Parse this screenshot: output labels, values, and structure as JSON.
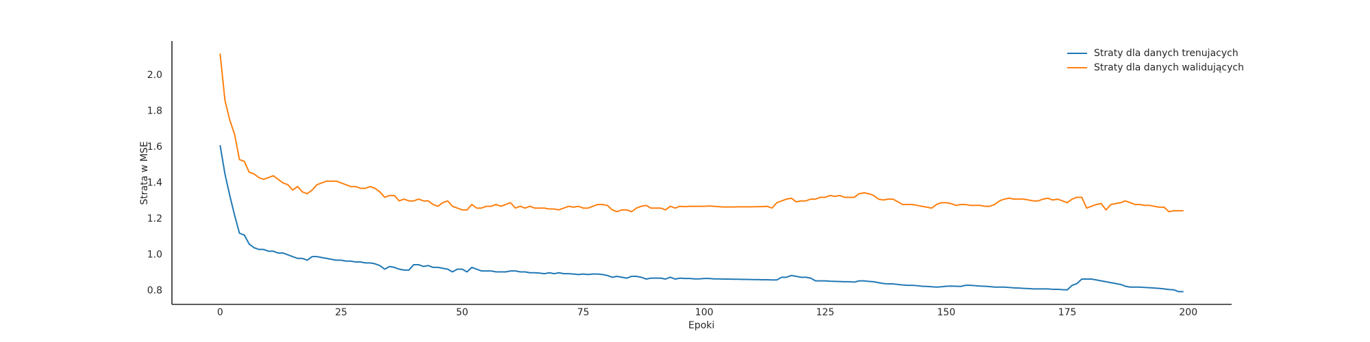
{
  "chart_data": {
    "type": "line",
    "x_label": "Epoki",
    "y_label": "Strata w MSE",
    "x": [
      0,
      1,
      2,
      3,
      4,
      5,
      6,
      7,
      8,
      9,
      10,
      11,
      12,
      13,
      14,
      15,
      16,
      17,
      18,
      19,
      20,
      21,
      22,
      23,
      24,
      25,
      26,
      27,
      28,
      29,
      30,
      31,
      32,
      33,
      34,
      35,
      36,
      37,
      38,
      39,
      40,
      41,
      42,
      43,
      44,
      45,
      46,
      47,
      48,
      49,
      50,
      51,
      52,
      53,
      54,
      55,
      56,
      57,
      58,
      59,
      60,
      61,
      62,
      63,
      64,
      65,
      66,
      67,
      68,
      69,
      70,
      71,
      72,
      73,
      74,
      75,
      76,
      77,
      78,
      79,
      80,
      81,
      82,
      83,
      84,
      85,
      86,
      87,
      88,
      89,
      90,
      91,
      92,
      93,
      94,
      95,
      96,
      97,
      98,
      99,
      100,
      101,
      102,
      103,
      104,
      105,
      106,
      107,
      108,
      109,
      110,
      111,
      112,
      113,
      114,
      115,
      116,
      117,
      118,
      119,
      120,
      121,
      122,
      123,
      124,
      125,
      126,
      127,
      128,
      129,
      130,
      131,
      132,
      133,
      134,
      135,
      136,
      137,
      138,
      139,
      140,
      141,
      142,
      143,
      144,
      145,
      146,
      147,
      148,
      149,
      150,
      151,
      152,
      153,
      154,
      155,
      156,
      157,
      158,
      159,
      160,
      161,
      162,
      163,
      164,
      165,
      166,
      167,
      168,
      169,
      170,
      171,
      172,
      173,
      174,
      175,
      176,
      177,
      178,
      179,
      180,
      181,
      182,
      183,
      184,
      185,
      186,
      187,
      188,
      189,
      190,
      191,
      192,
      193,
      194,
      195,
      196,
      197,
      198,
      199
    ],
    "series": [
      {
        "name": "Straty dla danych trenujacych",
        "color": "#1f77b4",
        "values": [
          1.61,
          1.45,
          1.33,
          1.22,
          1.12,
          1.11,
          1.06,
          1.04,
          1.03,
          1.03,
          1.02,
          1.02,
          1.01,
          1.01,
          1.0,
          0.99,
          0.98,
          0.98,
          0.97,
          0.99,
          0.99,
          0.985,
          0.98,
          0.975,
          0.97,
          0.97,
          0.965,
          0.965,
          0.96,
          0.96,
          0.955,
          0.955,
          0.95,
          0.94,
          0.92,
          0.935,
          0.93,
          0.92,
          0.915,
          0.915,
          0.945,
          0.945,
          0.935,
          0.94,
          0.93,
          0.93,
          0.925,
          0.92,
          0.905,
          0.92,
          0.92,
          0.905,
          0.93,
          0.92,
          0.91,
          0.91,
          0.91,
          0.905,
          0.905,
          0.905,
          0.91,
          0.91,
          0.905,
          0.905,
          0.9,
          0.9,
          0.898,
          0.895,
          0.9,
          0.895,
          0.9,
          0.895,
          0.895,
          0.893,
          0.89,
          0.893,
          0.89,
          0.893,
          0.893,
          0.89,
          0.885,
          0.875,
          0.88,
          0.875,
          0.87,
          0.88,
          0.88,
          0.875,
          0.865,
          0.87,
          0.87,
          0.87,
          0.865,
          0.875,
          0.865,
          0.87,
          0.868,
          0.868,
          0.866,
          0.866,
          0.868,
          0.868,
          0.866,
          0.866,
          0.865,
          0.865,
          0.864,
          0.864,
          0.863,
          0.863,
          0.862,
          0.862,
          0.861,
          0.861,
          0.86,
          0.86,
          0.875,
          0.875,
          0.885,
          0.88,
          0.875,
          0.875,
          0.87,
          0.855,
          0.855,
          0.855,
          0.853,
          0.852,
          0.851,
          0.85,
          0.85,
          0.848,
          0.855,
          0.855,
          0.852,
          0.85,
          0.845,
          0.84,
          0.838,
          0.838,
          0.835,
          0.832,
          0.83,
          0.83,
          0.828,
          0.825,
          0.824,
          0.822,
          0.82,
          0.822,
          0.825,
          0.826,
          0.825,
          0.824,
          0.83,
          0.83,
          0.828,
          0.826,
          0.825,
          0.823,
          0.82,
          0.82,
          0.82,
          0.818,
          0.816,
          0.815,
          0.813,
          0.812,
          0.81,
          0.81,
          0.81,
          0.81,
          0.808,
          0.808,
          0.806,
          0.805,
          0.83,
          0.84,
          0.865,
          0.865,
          0.865,
          0.86,
          0.855,
          0.85,
          0.845,
          0.84,
          0.835,
          0.825,
          0.82,
          0.82,
          0.82,
          0.818,
          0.817,
          0.815,
          0.813,
          0.81,
          0.807,
          0.805,
          0.795,
          0.795
        ]
      },
      {
        "name": "Straty dla danych walidujących",
        "color": "#ff7f0e",
        "values": [
          2.12,
          1.86,
          1.75,
          1.67,
          1.53,
          1.52,
          1.46,
          1.45,
          1.43,
          1.42,
          1.43,
          1.44,
          1.42,
          1.4,
          1.39,
          1.36,
          1.38,
          1.35,
          1.34,
          1.36,
          1.39,
          1.4,
          1.41,
          1.41,
          1.41,
          1.4,
          1.39,
          1.38,
          1.38,
          1.37,
          1.37,
          1.38,
          1.37,
          1.35,
          1.32,
          1.33,
          1.33,
          1.3,
          1.31,
          1.3,
          1.3,
          1.31,
          1.3,
          1.3,
          1.28,
          1.27,
          1.29,
          1.3,
          1.27,
          1.26,
          1.25,
          1.25,
          1.28,
          1.26,
          1.26,
          1.27,
          1.27,
          1.28,
          1.27,
          1.28,
          1.29,
          1.26,
          1.27,
          1.26,
          1.27,
          1.26,
          1.26,
          1.26,
          1.255,
          1.255,
          1.25,
          1.26,
          1.27,
          1.265,
          1.27,
          1.26,
          1.26,
          1.27,
          1.28,
          1.28,
          1.275,
          1.25,
          1.24,
          1.25,
          1.25,
          1.24,
          1.26,
          1.27,
          1.275,
          1.26,
          1.26,
          1.26,
          1.25,
          1.27,
          1.26,
          1.27,
          1.268,
          1.27,
          1.27,
          1.27,
          1.27,
          1.272,
          1.27,
          1.268,
          1.266,
          1.266,
          1.266,
          1.267,
          1.267,
          1.267,
          1.267,
          1.268,
          1.268,
          1.27,
          1.26,
          1.29,
          1.3,
          1.31,
          1.315,
          1.295,
          1.3,
          1.3,
          1.31,
          1.31,
          1.32,
          1.32,
          1.33,
          1.325,
          1.33,
          1.32,
          1.32,
          1.32,
          1.34,
          1.345,
          1.34,
          1.33,
          1.31,
          1.305,
          1.31,
          1.31,
          1.295,
          1.28,
          1.28,
          1.28,
          1.275,
          1.27,
          1.265,
          1.26,
          1.28,
          1.29,
          1.29,
          1.285,
          1.275,
          1.28,
          1.28,
          1.275,
          1.275,
          1.275,
          1.27,
          1.27,
          1.28,
          1.3,
          1.31,
          1.315,
          1.31,
          1.31,
          1.31,
          1.305,
          1.3,
          1.3,
          1.31,
          1.315,
          1.305,
          1.31,
          1.3,
          1.29,
          1.31,
          1.32,
          1.32,
          1.26,
          1.27,
          1.28,
          1.285,
          1.25,
          1.28,
          1.285,
          1.29,
          1.3,
          1.29,
          1.28,
          1.28,
          1.275,
          1.275,
          1.27,
          1.265,
          1.265,
          1.24,
          1.245,
          1.245,
          1.245
        ]
      }
    ],
    "xlim": [
      -9.95,
      208.95
    ],
    "ylim": [
      0.724,
      2.19
    ],
    "xticks": [
      0,
      25,
      50,
      75,
      100,
      125,
      150,
      175,
      200
    ],
    "yticks": [
      0.8,
      {
        "value": 1,
        "label": "1.0"
      },
      1.2,
      1.4,
      1.6,
      1.8,
      {
        "value": 2,
        "label": "2.0"
      }
    ],
    "grid": false,
    "legend": "upper right"
  }
}
